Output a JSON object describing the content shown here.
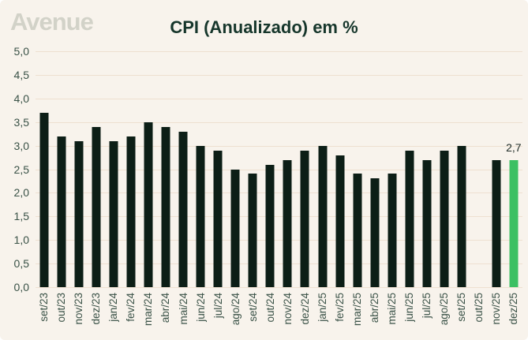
{
  "logo": "Avenue",
  "header": {
    "title": "CPI (Anualizado) em %"
  },
  "colors": {
    "background": "#f8f3ec",
    "bar": "#0c1e16",
    "highlight_bar": "#3cc063",
    "gridline": "#eee0d0",
    "title": "#16362b",
    "axis_text": "#3a5247",
    "logo": "#d2d2c8"
  },
  "yaxis": {
    "ticks": [
      "5,0",
      "4,5",
      "4,0",
      "3,5",
      "3,0",
      "2,5",
      "2,0",
      "1,5",
      "1,0",
      "0,5",
      "0,0"
    ]
  },
  "chart_data": {
    "type": "bar",
    "title": "CPI (Anualizado) em %",
    "categories": [
      "set/23",
      "out/23",
      "nov/23",
      "dez/23",
      "jan/24",
      "fev/24",
      "mar/24",
      "abr/24",
      "mai/24",
      "jun/24",
      "jul/24",
      "ago/24",
      "set/24",
      "out/24",
      "nov/24",
      "dez/24",
      "jan/25",
      "fev/25",
      "mar/25",
      "abr/25",
      "mai/25",
      "jun/25",
      "jul/25",
      "ago/25",
      "set/25",
      "out/25",
      "nov/25",
      "dez/25"
    ],
    "values": [
      3.7,
      3.2,
      3.1,
      3.4,
      3.1,
      3.2,
      3.5,
      3.4,
      3.3,
      3.0,
      2.9,
      2.5,
      2.4,
      2.6,
      2.7,
      2.9,
      3.0,
      2.8,
      2.4,
      2.3,
      2.4,
      2.9,
      2.7,
      2.9,
      3.0,
      null,
      2.7,
      2.7
    ],
    "xlabel": "",
    "ylabel": "",
    "ylim": [
      0,
      5
    ],
    "ytick_step": 0.5,
    "grid": true,
    "legend": false,
    "highlight_index": 27,
    "data_label": {
      "index": 27,
      "text": "2,7"
    }
  }
}
